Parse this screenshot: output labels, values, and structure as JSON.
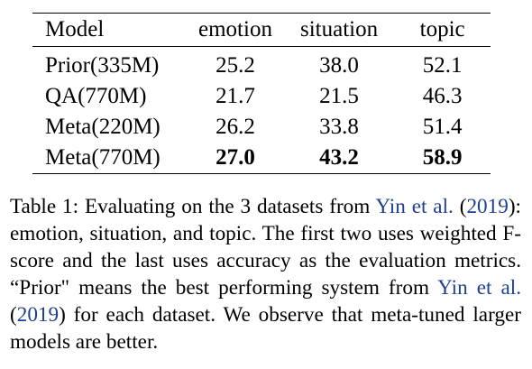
{
  "table": {
    "headers": [
      "Model",
      "emotion",
      "situation",
      "topic"
    ],
    "rows": [
      {
        "model": "Prior(335M)",
        "emotion": "25.2",
        "situation": "38.0",
        "topic": "52.1"
      },
      {
        "model": "QA(770M)",
        "emotion": "21.7",
        "situation": "21.5",
        "topic": "46.3"
      },
      {
        "model": "Meta(220M)",
        "emotion": "26.2",
        "situation": "33.8",
        "topic": "51.4"
      },
      {
        "model": "Meta(770M)",
        "emotion": "27.0",
        "situation": "43.2",
        "topic": "58.9"
      }
    ]
  },
  "caption": {
    "part1": "Table 1: Evaluating on the 3 datasets from ",
    "cite1_name": "Yin et al.",
    "paren_open": " (",
    "cite1_year": "2019",
    "part2": "): emotion, situation, and topic.  The first two uses weighted F-score and the last uses accuracy as the evaluation metrics. “Prior\" means the best performing system from ",
    "cite2_name": "Yin et al.",
    "cite2_year": "2019",
    "part3": ") for each dataset. We ob­serve that meta-tuned larger models are better."
  },
  "colors": {
    "citation": "#1f3f8f",
    "text": "#000000"
  }
}
